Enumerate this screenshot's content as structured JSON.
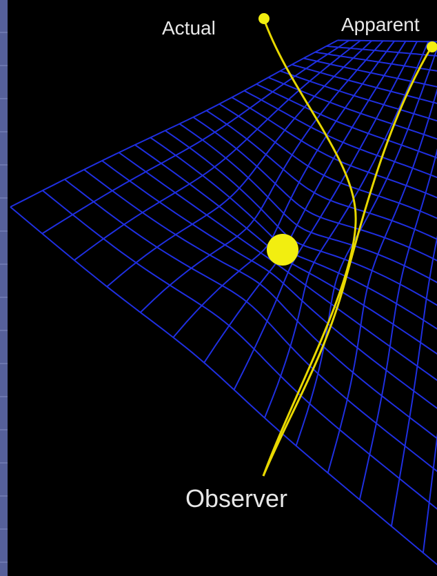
{
  "labels": {
    "actual": "Actual",
    "apparent": "Apparent",
    "observer": "Observer"
  }
}
